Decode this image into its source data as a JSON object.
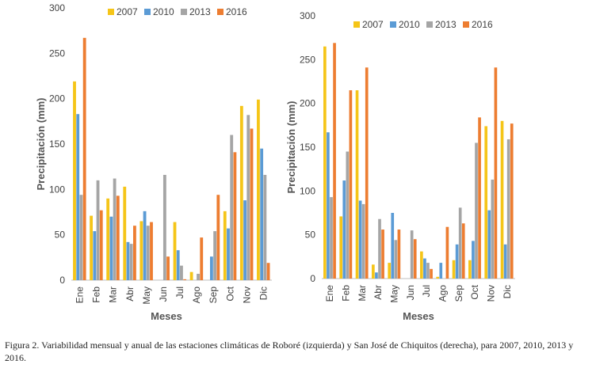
{
  "chart_data": [
    {
      "type": "bar",
      "xlabel": "Meses",
      "ylabel": "Precipitación (mm)",
      "ylim": [
        0,
        300
      ],
      "yticks": [
        0,
        50,
        100,
        150,
        200,
        250,
        300
      ],
      "categories": [
        "Ene",
        "Feb",
        "Mar",
        "Abr",
        "May",
        "Jun",
        "Jul",
        "Ago",
        "Sep",
        "Oct",
        "Nov",
        "Dic"
      ],
      "legend_position": "top",
      "gridlines": false,
      "series": [
        {
          "name": "2007",
          "color": "#F5C518",
          "values": [
            219,
            71,
            90,
            103,
            65,
            0,
            64,
            9,
            0,
            76,
            192,
            199
          ]
        },
        {
          "name": "2010",
          "color": "#5B9BD5",
          "values": [
            183,
            54,
            70,
            42,
            76,
            0,
            33,
            0,
            26,
            57,
            88,
            145
          ]
        },
        {
          "name": "2013",
          "color": "#A5A5A5",
          "values": [
            94,
            110,
            112,
            40,
            60,
            116,
            16,
            7,
            54,
            160,
            182,
            116
          ]
        },
        {
          "name": "2016",
          "color": "#ED7D31",
          "values": [
            267,
            77,
            93,
            60,
            64,
            26,
            1,
            47,
            94,
            141,
            167,
            19
          ]
        }
      ]
    },
    {
      "type": "bar",
      "xlabel": "Meses",
      "ylabel": "Precipitación (mm)",
      "ylim": [
        0,
        300
      ],
      "yticks": [
        0,
        50,
        100,
        150,
        200,
        250,
        300
      ],
      "categories": [
        "Ene",
        "Feb",
        "Mar",
        "Abr",
        "May",
        "Jun",
        "Jul",
        "Ago",
        "Sep",
        "Oct",
        "Nov",
        "Dic"
      ],
      "legend_position": "top",
      "gridlines": false,
      "series": [
        {
          "name": "2007",
          "color": "#F5C518",
          "values": [
            265,
            71,
            215,
            16,
            18,
            0,
            31,
            2,
            21,
            21,
            174,
            180
          ]
        },
        {
          "name": "2010",
          "color": "#5B9BD5",
          "values": [
            167,
            112,
            89,
            7,
            75,
            0,
            23,
            18,
            39,
            43,
            78,
            39
          ]
        },
        {
          "name": "2013",
          "color": "#A5A5A5",
          "values": [
            93,
            145,
            85,
            68,
            44,
            55,
            18,
            0,
            81,
            155,
            113,
            159
          ]
        },
        {
          "name": "2016",
          "color": "#ED7D31",
          "values": [
            269,
            215,
            241,
            56,
            56,
            45,
            11,
            59,
            63,
            184,
            241,
            177
          ]
        }
      ]
    }
  ],
  "caption": "Figura 2. Variabilidad mensual y anual de las estaciones climáticas de Roboré (izquierda) y San José de Chiquitos (derecha), para 2007, 2010, 2013 y 2016."
}
